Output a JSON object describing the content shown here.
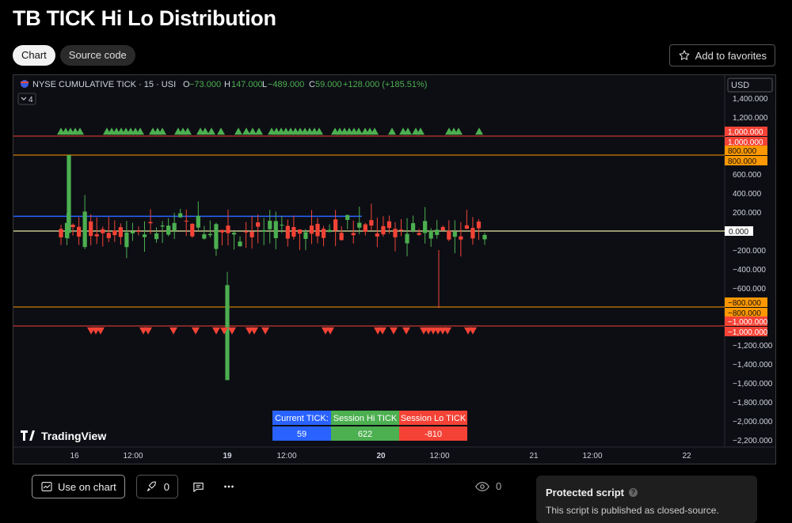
{
  "page": {
    "title": "TB TICK Hi Lo Distribution"
  },
  "tabs": [
    {
      "label": "Chart"
    },
    {
      "label": "Source code"
    }
  ],
  "favorites": {
    "label": "Add to favorites"
  },
  "chart": {
    "symbol": "NYSE CUMULATIVE TICK · 15 · USI",
    "ohlc": {
      "o_label": "O",
      "o": "−73.000",
      "h_label": "H",
      "h": "147.000",
      "l_label": "L",
      "l": "−489.000",
      "c_label": "C",
      "c": "59.000",
      "change": "+128.000 (+185.51%)"
    },
    "indicator_count": "4",
    "currency": "USD",
    "watermark": "TradingView",
    "current_price_label": "0.000",
    "table": {
      "headers": [
        "Current TICK:",
        "Session Hi TICK",
        "Session Lo TICK"
      ],
      "values": [
        "59",
        "622",
        "-810"
      ],
      "colors": [
        "#2962ff",
        "#4caf50",
        "#f44336"
      ]
    }
  },
  "chart_data": {
    "type": "candlestick",
    "y_range": [
      -2300,
      1500
    ],
    "y_ticks": [
      "1,400.000",
      "1,200.000",
      "600.000",
      "400.000",
      "200.000",
      "−200.000",
      "−400.000",
      "−600.000",
      "−1,200.000",
      "−1,400.000",
      "−1,600.000",
      "−1,800.000",
      "−2,000.000",
      "−2,200.000"
    ],
    "x_ticks": [
      "16",
      "12:00",
      "19",
      "12:00",
      "20",
      "12:00",
      "21",
      "12:00",
      "22"
    ],
    "levels": [
      {
        "value": 1000,
        "label": "1,000.000",
        "color": "#f44336"
      },
      {
        "value": 800,
        "label": "800.000",
        "color": "#ff9800"
      },
      {
        "value": -800,
        "label": "−800.000",
        "color": "#ff9800"
      },
      {
        "value": -1000,
        "label": "−1,000.000",
        "color": "#f44336"
      }
    ],
    "up_color": "#4caf50",
    "down_color": "#f44336"
  },
  "actions": {
    "use_on_chart": "Use on chart",
    "boost_count": "0",
    "views": "0"
  },
  "protected": {
    "title": "Protected script",
    "text": "This script is published as closed-source."
  }
}
